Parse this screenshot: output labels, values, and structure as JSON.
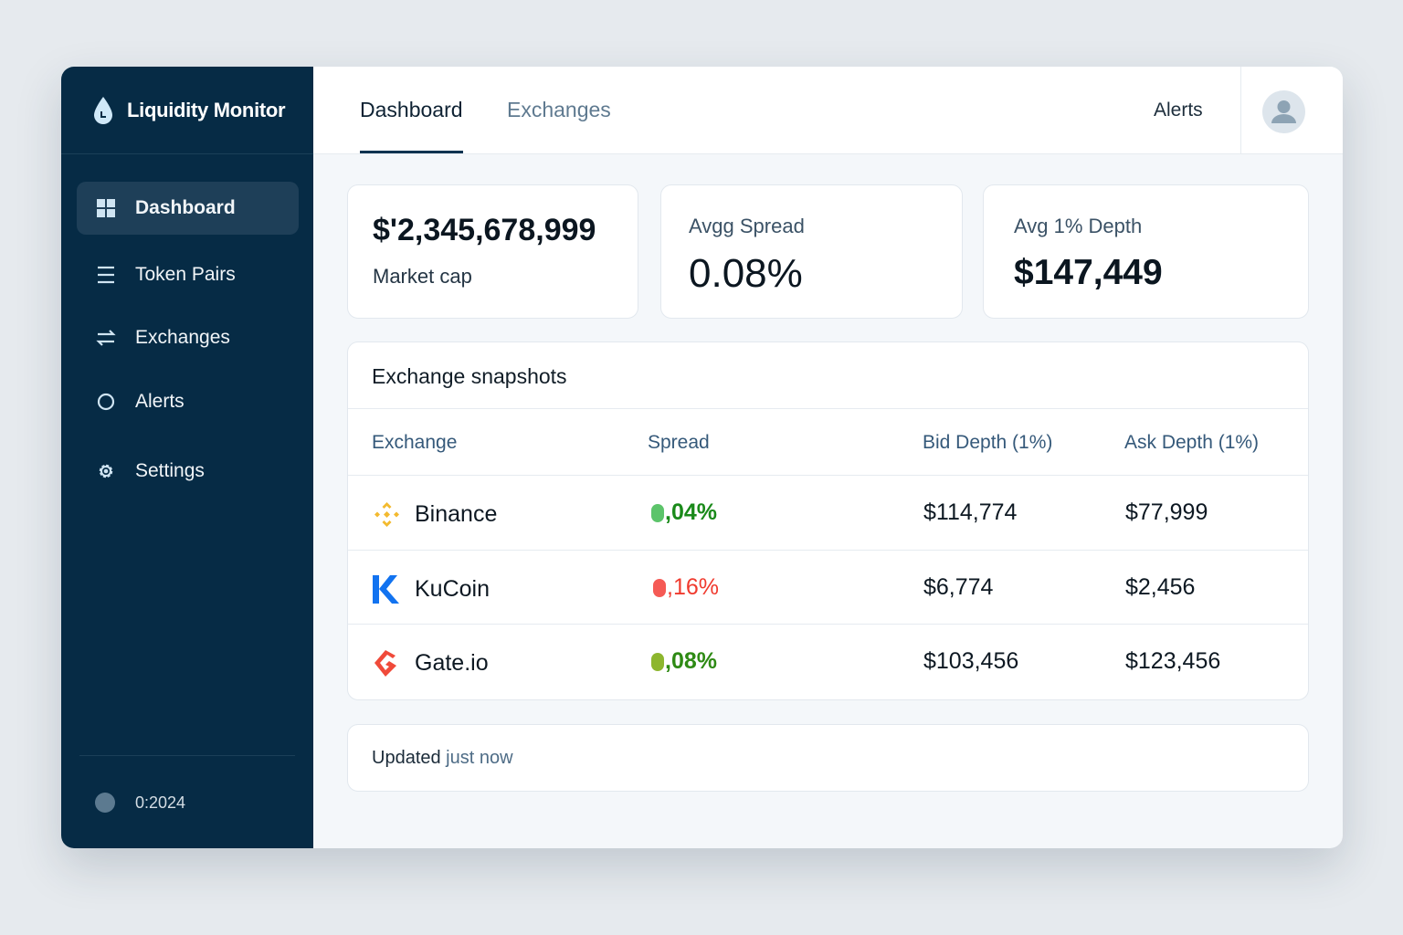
{
  "app": {
    "title": "Liquidity Monitor"
  },
  "sidebar": {
    "items": [
      {
        "label": "Dashboard",
        "icon": "grid-icon",
        "active": true
      },
      {
        "label": "Token Pairs",
        "icon": "list-icon"
      },
      {
        "label": "Exchanges",
        "icon": "swap-icon"
      },
      {
        "label": "Alerts",
        "icon": "circle-icon"
      },
      {
        "label": "Settings",
        "icon": "gear-icon"
      }
    ],
    "footer": "0:2024"
  },
  "header": {
    "tabs": [
      {
        "label": "Dashboard",
        "active": true
      },
      {
        "label": "Exchanges"
      }
    ],
    "alerts": "Alerts"
  },
  "stats": {
    "market_cap": {
      "value": "$'2,345,678,999",
      "label": "Market cap"
    },
    "spread": {
      "label": "Avgg Spread",
      "value": "0.08%"
    },
    "depth": {
      "label": "Avg 1% Depth",
      "value": "$147,449"
    }
  },
  "table": {
    "title": "Exchange snapshots",
    "columns": [
      "Exchange",
      "Spread",
      "Bid Depth (1%)",
      "Ask Depth (1%)"
    ],
    "rows": [
      {
        "exchange": "Binance",
        "spread": ",04%",
        "spread_color": "#1a8a1a",
        "dot_color": "#5cc46a",
        "bid": "$114,774",
        "ask": "$77,999"
      },
      {
        "exchange": "KuCoin",
        "spread": ",16%",
        "spread_color": "#f03a2e",
        "dot_color": "#f55a55",
        "bid": "$6,774",
        "ask": "$2,456"
      },
      {
        "exchange": "Gate.io",
        "spread": ",08%",
        "spread_color": "#2e8a14",
        "dot_color": "#8db62e",
        "bid": "$103,456",
        "ask": "$123,456"
      }
    ]
  },
  "status": {
    "prefix": "Updated ",
    "suffix": "just now"
  }
}
